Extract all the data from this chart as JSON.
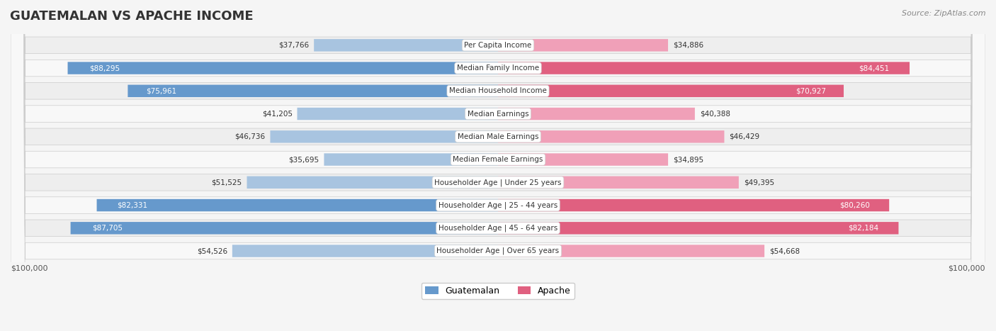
{
  "title": "GUATEMALAN VS APACHE INCOME",
  "source": "Source: ZipAtlas.com",
  "categories": [
    "Per Capita Income",
    "Median Family Income",
    "Median Household Income",
    "Median Earnings",
    "Median Male Earnings",
    "Median Female Earnings",
    "Householder Age | Under 25 years",
    "Householder Age | 25 - 44 years",
    "Householder Age | 45 - 64 years",
    "Householder Age | Over 65 years"
  ],
  "guatemalan_values": [
    37766,
    88295,
    75961,
    41205,
    46736,
    35695,
    51525,
    82331,
    87705,
    54526
  ],
  "apache_values": [
    34886,
    84451,
    70927,
    40388,
    46429,
    34895,
    49395,
    80260,
    82184,
    54668
  ],
  "guatemalan_labels": [
    "$37,766",
    "$88,295",
    "$75,961",
    "$41,205",
    "$46,736",
    "$35,695",
    "$51,525",
    "$82,331",
    "$87,705",
    "$54,526"
  ],
  "apache_labels": [
    "$34,886",
    "$84,451",
    "$70,927",
    "$40,388",
    "$46,429",
    "$34,895",
    "$49,395",
    "$80,260",
    "$82,184",
    "$54,668"
  ],
  "max_value": 100000,
  "guatemalan_color_light": "#a8c4e0",
  "guatemalan_color_dark": "#6699cc",
  "apache_color_light": "#f0a0b8",
  "apache_color_dark": "#e06080",
  "background_color": "#f5f5f5",
  "row_bg_color": "#eeeeee",
  "row_alt_color": "#f8f8f8",
  "label_box_color": "#ffffff",
  "threshold_dark_label": 60000
}
